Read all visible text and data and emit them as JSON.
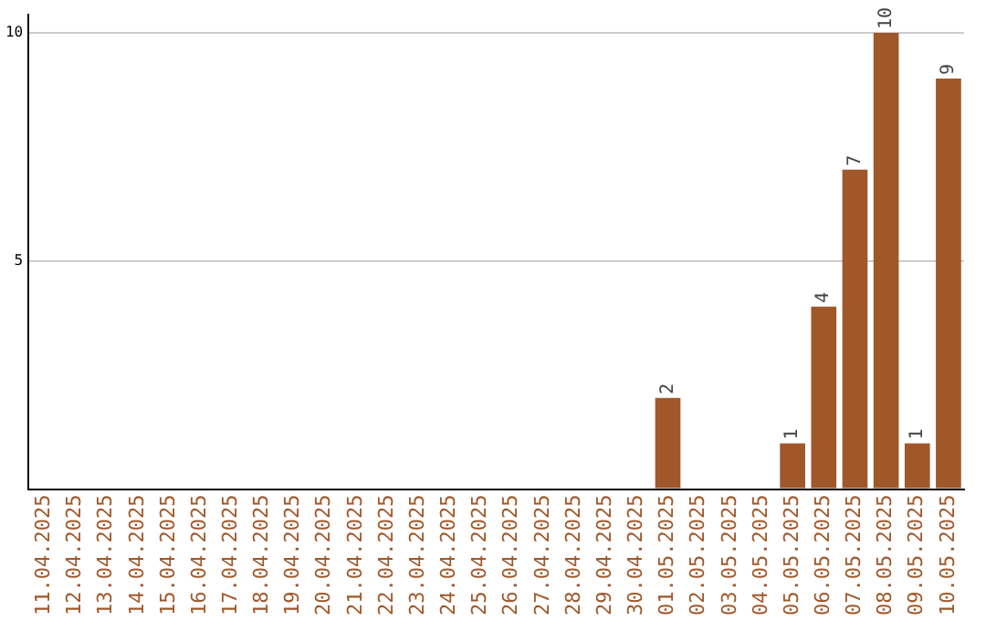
{
  "chart_data": {
    "type": "bar",
    "categories": [
      "11.04.2025",
      "12.04.2025",
      "13.04.2025",
      "14.04.2025",
      "15.04.2025",
      "16.04.2025",
      "17.04.2025",
      "18.04.2025",
      "19.04.2025",
      "20.04.2025",
      "21.04.2025",
      "22.04.2025",
      "23.04.2025",
      "24.04.2025",
      "25.04.2025",
      "26.04.2025",
      "27.04.2025",
      "28.04.2025",
      "29.04.2025",
      "30.04.2025",
      "01.05.2025",
      "02.05.2025",
      "03.05.2025",
      "04.05.2025",
      "05.05.2025",
      "06.05.2025",
      "07.05.2025",
      "08.05.2025",
      "09.05.2025",
      "10.05.2025"
    ],
    "values": [
      0,
      0,
      0,
      0,
      0,
      0,
      0,
      0,
      0,
      0,
      0,
      0,
      0,
      0,
      0,
      0,
      0,
      0,
      0,
      0,
      2,
      0,
      0,
      0,
      1,
      4,
      7,
      10,
      1,
      9
    ],
    "value_labels": [
      null,
      null,
      null,
      null,
      null,
      null,
      null,
      null,
      null,
      null,
      null,
      null,
      null,
      null,
      null,
      null,
      null,
      null,
      null,
      null,
      "2",
      null,
      null,
      null,
      "1",
      "4",
      "7",
      "10",
      "1",
      "9"
    ],
    "color": "#a0582a",
    "ylim": [
      0,
      10.4
    ],
    "yticks": [
      {
        "value": 0,
        "label": null
      },
      5,
      10
    ],
    "grid": "y",
    "legend": false
  }
}
